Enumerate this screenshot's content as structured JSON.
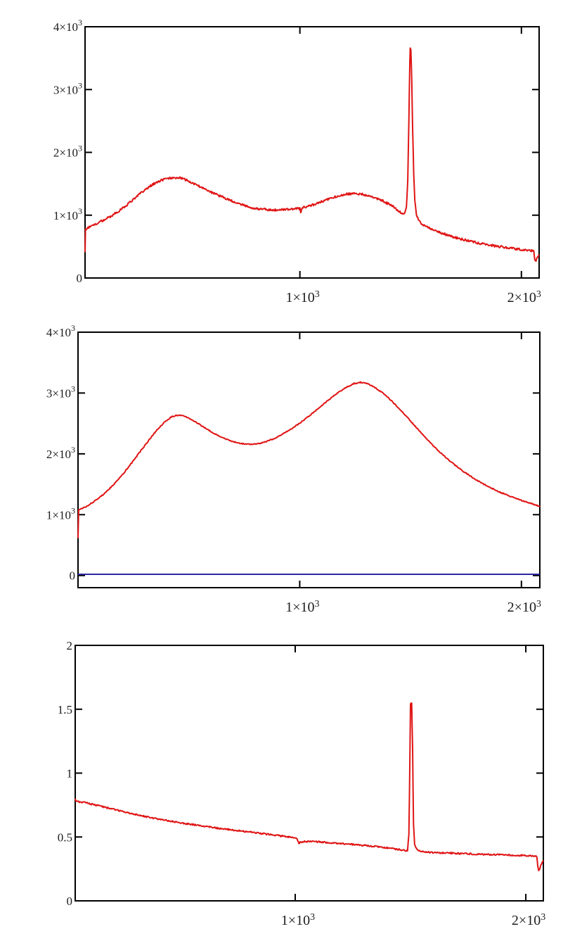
{
  "page": {
    "background_color": "#ffffff",
    "axis_color": "#000000",
    "tick_label_color": "#1c1c1c"
  },
  "chart_data": [
    {
      "id": "chart-1-noisy-spectrum",
      "type": "line",
      "title": "",
      "xlabel": "",
      "ylabel": "",
      "grid": false,
      "legend": false,
      "frame": "boxed-mirrored-inward-ticks",
      "xlim": [
        30,
        2080
      ],
      "ylim": [
        0,
        4000
      ],
      "x_ticks": [
        {
          "value": 1000,
          "label": "1×10^3"
        },
        {
          "value": 2000,
          "label": "2×10^3"
        }
      ],
      "y_ticks": [
        {
          "value": 0,
          "label": "0"
        },
        {
          "value": 1000,
          "label": "1×10^3"
        },
        {
          "value": 2000,
          "label": "2×10^3"
        },
        {
          "value": 3000,
          "label": "3×10^3"
        },
        {
          "value": 4000,
          "label": "4×10^3"
        }
      ],
      "series": [
        {
          "name": "red-trace",
          "color": "#e01414",
          "stroke_width": 2,
          "noise_amplitude": 18,
          "points": [
            [
              30,
              410
            ],
            [
              32,
              780
            ],
            [
              70,
              845
            ],
            [
              110,
              915
            ],
            [
              150,
              990
            ],
            [
              190,
              1085
            ],
            [
              230,
              1195
            ],
            [
              270,
              1315
            ],
            [
              310,
              1430
            ],
            [
              350,
              1520
            ],
            [
              390,
              1575
            ],
            [
              420,
              1595
            ],
            [
              450,
              1600
            ],
            [
              480,
              1570
            ],
            [
              510,
              1520
            ],
            [
              550,
              1450
            ],
            [
              590,
              1385
            ],
            [
              630,
              1320
            ],
            [
              670,
              1260
            ],
            [
              710,
              1205
            ],
            [
              750,
              1150
            ],
            [
              790,
              1115
            ],
            [
              830,
              1095
            ],
            [
              870,
              1085
            ],
            [
              910,
              1085
            ],
            [
              950,
              1095
            ],
            [
              985,
              1105
            ],
            [
              1000,
              1105
            ],
            [
              1004,
              1040
            ],
            [
              1010,
              1115
            ],
            [
              1050,
              1150
            ],
            [
              1100,
              1220
            ],
            [
              1150,
              1285
            ],
            [
              1200,
              1330
            ],
            [
              1245,
              1345
            ],
            [
              1285,
              1330
            ],
            [
              1325,
              1295
            ],
            [
              1365,
              1245
            ],
            [
              1405,
              1170
            ],
            [
              1435,
              1100
            ],
            [
              1455,
              1040
            ],
            [
              1465,
              1015
            ],
            [
              1474,
              1045
            ],
            [
              1481,
              1130
            ],
            [
              1487,
              1550
            ],
            [
              1492,
              2500
            ],
            [
              1496,
              3400
            ],
            [
              1498,
              3660
            ],
            [
              1501,
              3640
            ],
            [
              1505,
              3150
            ],
            [
              1509,
              2350
            ],
            [
              1514,
              1650
            ],
            [
              1519,
              1230
            ],
            [
              1526,
              1010
            ],
            [
              1535,
              925
            ],
            [
              1550,
              865
            ],
            [
              1575,
              810
            ],
            [
              1605,
              760
            ],
            [
              1645,
              710
            ],
            [
              1685,
              663
            ],
            [
              1725,
              622
            ],
            [
              1765,
              588
            ],
            [
              1805,
              557
            ],
            [
              1845,
              530
            ],
            [
              1885,
              507
            ],
            [
              1925,
              487
            ],
            [
              1965,
              468
            ],
            [
              2005,
              452
            ],
            [
              2035,
              440
            ],
            [
              2050,
              432
            ],
            [
              2056,
              420
            ],
            [
              2060,
              300
            ],
            [
              2066,
              287
            ],
            [
              2072,
              315
            ],
            [
              2078,
              372
            ],
            [
              2080,
              375
            ]
          ]
        }
      ]
    },
    {
      "id": "chart-2-smooth-spectrum",
      "type": "line",
      "title": "",
      "xlabel": "",
      "ylabel": "",
      "grid": false,
      "legend": false,
      "frame": "boxed-mirrored-inward-ticks",
      "xlim": [
        0,
        2083
      ],
      "ylim": [
        -200,
        4000
      ],
      "x_ticks": [
        {
          "value": 1000,
          "label": "1×10^3"
        },
        {
          "value": 2000,
          "label": "2×10^3"
        }
      ],
      "y_ticks": [
        {
          "value": 0,
          "label": "0"
        },
        {
          "value": 1000,
          "label": "1×10^3"
        },
        {
          "value": 2000,
          "label": "2×10^3"
        },
        {
          "value": 3000,
          "label": "3×10^3"
        },
        {
          "value": 4000,
          "label": "4×10^3"
        }
      ],
      "series": [
        {
          "name": "red-trace",
          "color": "#e01414",
          "stroke_width": 2,
          "noise_amplitude": 8,
          "points": [
            [
              0,
              615
            ],
            [
              3,
              1080
            ],
            [
              40,
              1140
            ],
            [
              80,
              1235
            ],
            [
              120,
              1350
            ],
            [
              160,
              1490
            ],
            [
              200,
              1655
            ],
            [
              240,
              1840
            ],
            [
              280,
              2035
            ],
            [
              320,
              2225
            ],
            [
              355,
              2390
            ],
            [
              390,
              2520
            ],
            [
              420,
              2605
            ],
            [
              445,
              2635
            ],
            [
              470,
              2630
            ],
            [
              500,
              2590
            ],
            [
              535,
              2515
            ],
            [
              570,
              2430
            ],
            [
              610,
              2345
            ],
            [
              650,
              2270
            ],
            [
              690,
              2210
            ],
            [
              730,
              2170
            ],
            [
              770,
              2155
            ],
            [
              810,
              2165
            ],
            [
              850,
              2200
            ],
            [
              890,
              2260
            ],
            [
              930,
              2340
            ],
            [
              970,
              2430
            ],
            [
              1010,
              2530
            ],
            [
              1050,
              2645
            ],
            [
              1090,
              2765
            ],
            [
              1130,
              2885
            ],
            [
              1170,
              3000
            ],
            [
              1210,
              3095
            ],
            [
              1245,
              3155
            ],
            [
              1275,
              3175
            ],
            [
              1305,
              3155
            ],
            [
              1340,
              3090
            ],
            [
              1380,
              2985
            ],
            [
              1420,
              2850
            ],
            [
              1460,
              2700
            ],
            [
              1500,
              2540
            ],
            [
              1540,
              2375
            ],
            [
              1580,
              2215
            ],
            [
              1620,
              2070
            ],
            [
              1660,
              1935
            ],
            [
              1700,
              1815
            ],
            [
              1740,
              1705
            ],
            [
              1780,
              1610
            ],
            [
              1820,
              1520
            ],
            [
              1860,
              1445
            ],
            [
              1900,
              1375
            ],
            [
              1940,
              1315
            ],
            [
              1980,
              1260
            ],
            [
              2020,
              1210
            ],
            [
              2055,
              1170
            ],
            [
              2083,
              1135
            ]
          ]
        },
        {
          "name": "blue-baseline",
          "color": "#2828a8",
          "stroke_width": 2,
          "noise_amplitude": 0,
          "points": [
            [
              0,
              20
            ],
            [
              2083,
              20
            ]
          ]
        }
      ]
    },
    {
      "id": "chart-3-flat-trace-with-peak",
      "type": "line",
      "title": "",
      "xlabel": "",
      "ylabel": "",
      "grid": false,
      "legend": false,
      "frame": "boxed-mirrored-inward-ticks",
      "xlim": [
        46,
        2076
      ],
      "ylim": [
        0,
        2
      ],
      "x_ticks": [
        {
          "value": 1000,
          "label": "1×10^3"
        },
        {
          "value": 2000,
          "label": "2×10^3"
        }
      ],
      "y_ticks": [
        {
          "value": 0,
          "label": "0"
        },
        {
          "value": 0.5,
          "label": "0.5"
        },
        {
          "value": 1,
          "label": "1"
        },
        {
          "value": 1.5,
          "label": "1.5"
        },
        {
          "value": 2,
          "label": "2"
        }
      ],
      "series": [
        {
          "name": "red-trace",
          "color": "#e01414",
          "stroke_width": 2,
          "noise_amplitude": 0.006,
          "points": [
            [
              46,
              0.8
            ],
            [
              49,
              0.78
            ],
            [
              90,
              0.768
            ],
            [
              140,
              0.748
            ],
            [
              190,
              0.727
            ],
            [
              240,
              0.705
            ],
            [
              290,
              0.684
            ],
            [
              340,
              0.664
            ],
            [
              390,
              0.646
            ],
            [
              440,
              0.63
            ],
            [
              490,
              0.615
            ],
            [
              540,
              0.601
            ],
            [
              590,
              0.588
            ],
            [
              640,
              0.575
            ],
            [
              690,
              0.563
            ],
            [
              740,
              0.552
            ],
            [
              790,
              0.541
            ],
            [
              840,
              0.53
            ],
            [
              890,
              0.519
            ],
            [
              940,
              0.508
            ],
            [
              990,
              0.494
            ],
            [
              1008,
              0.488
            ],
            [
              1016,
              0.452
            ],
            [
              1026,
              0.462
            ],
            [
              1060,
              0.466
            ],
            [
              1110,
              0.46
            ],
            [
              1160,
              0.453
            ],
            [
              1210,
              0.447
            ],
            [
              1260,
              0.44
            ],
            [
              1310,
              0.432
            ],
            [
              1360,
              0.423
            ],
            [
              1410,
              0.412
            ],
            [
              1450,
              0.402
            ],
            [
              1478,
              0.393
            ],
            [
              1487,
              0.395
            ],
            [
              1493,
              0.52
            ],
            [
              1497,
              1.05
            ],
            [
              1500,
              1.54
            ],
            [
              1505,
              1.545
            ],
            [
              1509,
              1.2
            ],
            [
              1513,
              0.6
            ],
            [
              1518,
              0.44
            ],
            [
              1526,
              0.406
            ],
            [
              1542,
              0.39
            ],
            [
              1570,
              0.382
            ],
            [
              1620,
              0.377
            ],
            [
              1680,
              0.373
            ],
            [
              1740,
              0.369
            ],
            [
              1800,
              0.365
            ],
            [
              1860,
              0.362
            ],
            [
              1920,
              0.359
            ],
            [
              1980,
              0.356
            ],
            [
              2020,
              0.353
            ],
            [
              2042,
              0.35
            ],
            [
              2048,
              0.342
            ],
            [
              2052,
              0.27
            ],
            [
              2056,
              0.237
            ],
            [
              2062,
              0.262
            ],
            [
              2070,
              0.3
            ],
            [
              2076,
              0.31
            ]
          ]
        }
      ]
    }
  ]
}
